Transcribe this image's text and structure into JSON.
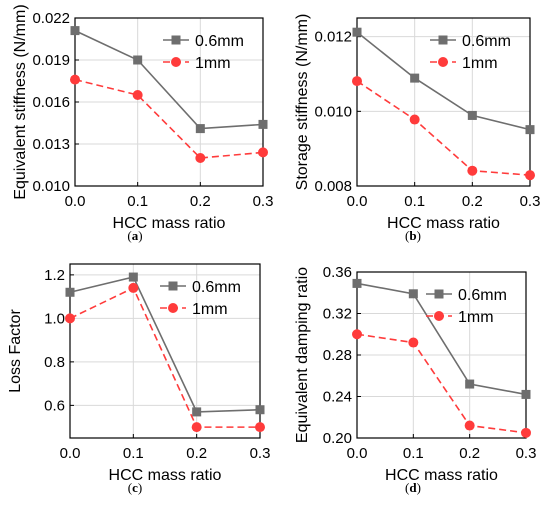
{
  "colors": {
    "series_0_6mm": "#6e6e6e",
    "series_1mm": "#ff3b3b",
    "grid": "#d9d9d9",
    "axis": "#000000"
  },
  "chart_data": [
    {
      "id": "a",
      "panel_label": "a",
      "type": "line",
      "x": [
        0.0,
        0.1,
        0.2,
        0.3
      ],
      "xlabel": "HCC mass ratio",
      "ylabel": "Equivalent stiffness (N/mm)",
      "xlim": [
        0.0,
        0.3
      ],
      "ylim": [
        0.01,
        0.022
      ],
      "xticks": [
        "0.0",
        "0.1",
        "0.2",
        "0.3"
      ],
      "yticks": [
        "0.010",
        "0.013",
        "0.016",
        "0.019",
        "0.022"
      ],
      "grid": true,
      "legend_position": "top-right",
      "series": [
        {
          "name": "0.6mm",
          "values": [
            0.0211,
            0.019,
            0.0141,
            0.0144
          ],
          "color": "#6e6e6e",
          "marker": "square",
          "line": "solid"
        },
        {
          "name": "1mm",
          "values": [
            0.0176,
            0.0165,
            0.012,
            0.0124
          ],
          "color": "#ff3b3b",
          "marker": "circle",
          "line": "dashed"
        }
      ]
    },
    {
      "id": "b",
      "panel_label": "b",
      "type": "line",
      "x": [
        0.0,
        0.1,
        0.2,
        0.3
      ],
      "xlabel": "HCC mass ratio",
      "ylabel": "Storage stiffness (N/mm)",
      "xlim": [
        0.0,
        0.3
      ],
      "ylim": [
        0.008,
        0.0125
      ],
      "xticks": [
        "0.0",
        "0.1",
        "0.2",
        "0.3"
      ],
      "yticks": [
        "0.008",
        "0.010",
        "0.012"
      ],
      "grid": true,
      "legend_position": "top-right",
      "series": [
        {
          "name": "0.6mm",
          "values": [
            0.01212,
            0.01089,
            0.00989,
            0.00951
          ],
          "color": "#6e6e6e",
          "marker": "square",
          "line": "solid"
        },
        {
          "name": "1mm",
          "values": [
            0.01081,
            0.00978,
            0.00841,
            0.00829
          ],
          "color": "#ff3b3b",
          "marker": "circle",
          "line": "dashed"
        }
      ]
    },
    {
      "id": "c",
      "panel_label": "c",
      "type": "line",
      "x": [
        0.0,
        0.1,
        0.2,
        0.3
      ],
      "xlabel": "HCC mass ratio",
      "ylabel": "Loss Factor",
      "xlim": [
        0.0,
        0.3
      ],
      "ylim": [
        0.45,
        1.25
      ],
      "xticks": [
        "0.0",
        "0.1",
        "0.2",
        "0.3"
      ],
      "yticks": [
        "0.6",
        "0.8",
        "1.0",
        "1.2"
      ],
      "grid": true,
      "legend_position": "top-right",
      "series": [
        {
          "name": "0.6mm",
          "values": [
            1.12,
            1.19,
            0.57,
            0.58
          ],
          "color": "#6e6e6e",
          "marker": "square",
          "line": "solid"
        },
        {
          "name": "1mm",
          "values": [
            1.0,
            1.14,
            0.5,
            0.5
          ],
          "color": "#ff3b3b",
          "marker": "circle",
          "line": "dashed"
        }
      ]
    },
    {
      "id": "d",
      "panel_label": "d",
      "type": "line",
      "x": [
        0.0,
        0.1,
        0.2,
        0.3
      ],
      "xlabel": "HCC mass ratio",
      "ylabel": "Equivalent damping ratio",
      "xlim": [
        0.0,
        0.3
      ],
      "ylim": [
        0.2,
        0.36
      ],
      "xticks": [
        "0.0",
        "0.1",
        "0.2",
        "0.3"
      ],
      "yticks": [
        "0.20",
        "0.24",
        "0.28",
        "0.32",
        "0.36"
      ],
      "grid": true,
      "legend_position": "top-right",
      "series": [
        {
          "name": "0.6mm",
          "values": [
            0.349,
            0.339,
            0.252,
            0.242
          ],
          "color": "#6e6e6e",
          "marker": "square",
          "line": "solid"
        },
        {
          "name": "1mm",
          "values": [
            0.3,
            0.292,
            0.212,
            0.205
          ],
          "color": "#ff3b3b",
          "marker": "circle",
          "line": "dashed"
        }
      ]
    }
  ]
}
